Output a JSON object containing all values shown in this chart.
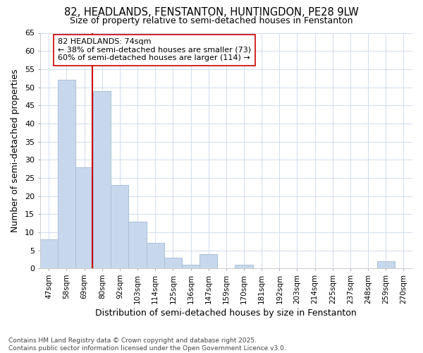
{
  "title1": "82, HEADLANDS, FENSTANTON, HUNTINGDON, PE28 9LW",
  "title2": "Size of property relative to semi-detached houses in Fenstanton",
  "xlabel": "Distribution of semi-detached houses by size in Fenstanton",
  "ylabel": "Number of semi-detached properties",
  "categories": [
    "47sqm",
    "58sqm",
    "69sqm",
    "80sqm",
    "92sqm",
    "103sqm",
    "114sqm",
    "125sqm",
    "136sqm",
    "147sqm",
    "159sqm",
    "170sqm",
    "181sqm",
    "192sqm",
    "203sqm",
    "214sqm",
    "225sqm",
    "237sqm",
    "248sqm",
    "259sqm",
    "270sqm"
  ],
  "values": [
    8,
    52,
    28,
    49,
    23,
    13,
    7,
    3,
    1,
    4,
    0,
    1,
    0,
    0,
    0,
    0,
    0,
    0,
    0,
    2,
    0
  ],
  "bar_color": "#c8d8ec",
  "bar_edge_color": "#a8c0d8",
  "pct_smaller": 38,
  "num_smaller": 73,
  "pct_larger": 60,
  "num_larger": 114,
  "vline_color": "#cc0000",
  "annotation_box_color": "#cc0000",
  "ylim": [
    0,
    65
  ],
  "yticks": [
    0,
    5,
    10,
    15,
    20,
    25,
    30,
    35,
    40,
    45,
    50,
    55,
    60,
    65
  ],
  "grid_color": "#d0dced",
  "bg_color": "#ffffff",
  "plot_bg_color": "#ffffff",
  "footnote": "Contains HM Land Registry data © Crown copyright and database right 2025.\nContains public sector information licensed under the Open Government Licence v3.0.",
  "vline_x_index": 2.45
}
